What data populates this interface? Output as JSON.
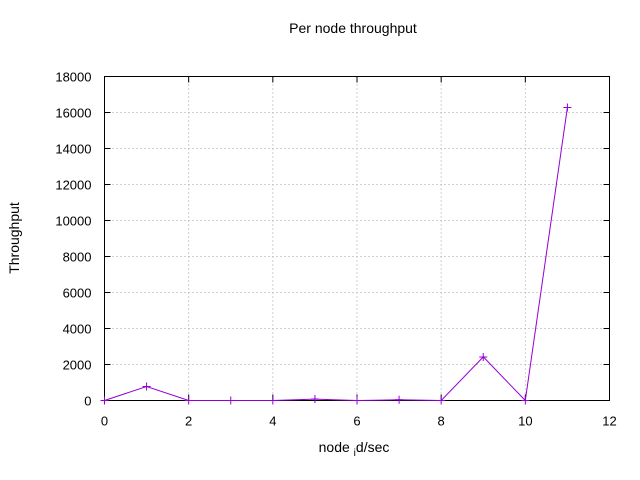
{
  "chart_data": {
    "type": "line",
    "title": "Per node throughput",
    "xlabel": "node",
    "xlabel_sub": "i",
    "xlabel_rest": "d/sec",
    "ylabel": "Throughput",
    "xlim": [
      0,
      12
    ],
    "ylim": [
      0,
      18000
    ],
    "xticks": [
      "0",
      "2",
      "4",
      "6",
      "8",
      "10",
      "12"
    ],
    "yticks": [
      "0",
      "2000",
      "4000",
      "6000",
      "8000",
      "10000",
      "12000",
      "14000",
      "16000",
      "18000"
    ],
    "grid": true,
    "legend": "none",
    "series": [
      {
        "color": "#9400d3",
        "marker": "plus",
        "x": [
          0,
          1,
          2,
          3,
          4,
          5,
          6,
          7,
          8,
          9,
          10,
          11
        ],
        "y": [
          0,
          780,
          0,
          0,
          0,
          80,
          0,
          40,
          0,
          2420,
          0,
          16280
        ]
      }
    ]
  }
}
